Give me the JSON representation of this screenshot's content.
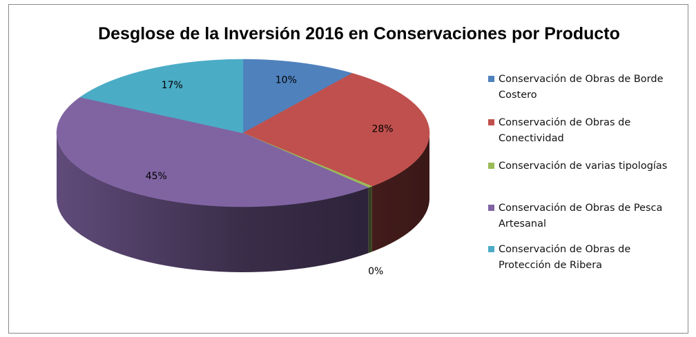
{
  "chart_data": {
    "type": "pie3d",
    "title": "Desglose de la Inversión 2016 en Conservaciones por Producto",
    "categories": [
      "Conservación de Obras de Borde Costero",
      "Conservación de Obras de Conectividad",
      "Conservación de varias tipologías",
      "Conservación de Obras de Pesca Artesanal",
      "Conservación de Obras de Protección de Ribera"
    ],
    "values": [
      10,
      28,
      0.4,
      45,
      17
    ],
    "value_labels": [
      "10%",
      "28%",
      "0%",
      "45%",
      "17%"
    ],
    "colors": [
      "#4f81bd",
      "#c0504d",
      "#9bbb59",
      "#8064a2",
      "#4bacc6"
    ],
    "legend": "right"
  }
}
